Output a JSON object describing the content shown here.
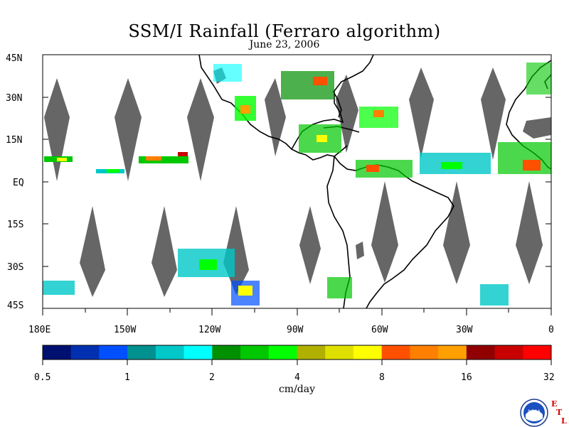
{
  "title": "SSM/I Rainfall (Ferraro algorithm)",
  "date": "June 23, 2006",
  "lat_labels": [
    "45N",
    "30N",
    "15N",
    "EQ",
    "15S",
    "30S",
    "45S"
  ],
  "lon_labels": [
    "180E",
    "150W",
    "120W",
    "90W",
    "60W",
    "30W",
    "0"
  ],
  "colorbar": {
    "ticks": [
      "0.5",
      "1",
      "2",
      "4",
      "8",
      "16",
      "32"
    ],
    "units": "cm/day",
    "colors": [
      "#001070",
      "#0030b0",
      "#0050ff",
      "#009090",
      "#00c8c8",
      "#00ffff",
      "#009000",
      "#00c800",
      "#00ff00",
      "#b0b000",
      "#e0e000",
      "#ffff00",
      "#ff5000",
      "#ff8000",
      "#ffa000",
      "#900000",
      "#c80000",
      "#ff0000"
    ]
  },
  "logo": {
    "text": "NOAA",
    "etl": [
      "E",
      "T",
      "L"
    ]
  },
  "map_colors": {
    "swath_gap": "#666666",
    "coast": "#000000"
  }
}
